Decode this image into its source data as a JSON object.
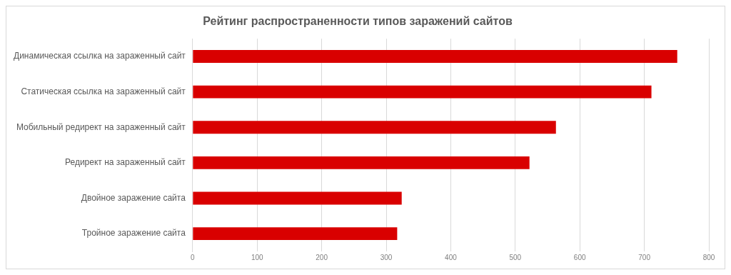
{
  "chart_data": {
    "type": "bar",
    "orientation": "horizontal",
    "title": "Рейтинг распространенности типов заражений сайтов",
    "categories": [
      "Динамическая ссылка на зараженный сайт",
      "Статическая ссылка на зараженный сайт",
      "Мобильный редирект на зараженный сайт",
      "Редирект на зараженный сайт",
      "Двойное заражение сайта",
      "Тройное заражение сайта"
    ],
    "values": [
      751,
      711,
      563,
      522,
      324,
      317
    ],
    "color": "#d90000",
    "xlim": [
      0,
      800
    ],
    "xticks": [
      0,
      100,
      200,
      300,
      400,
      500,
      600,
      700,
      800
    ],
    "grid": "x"
  }
}
